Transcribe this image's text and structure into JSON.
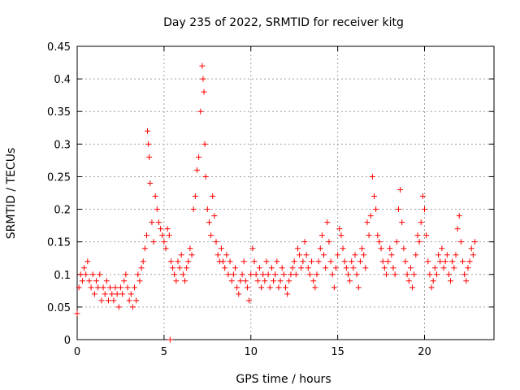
{
  "chart_data": {
    "type": "scatter",
    "title": "Day 235 of 2022, SRMTID for receiver kitg",
    "xlabel": "GPS time / hours",
    "ylabel": "SRMTID / TECUs",
    "xlim": [
      0,
      24
    ],
    "ylim": [
      0,
      0.45
    ],
    "x_ticks": [
      0,
      5,
      10,
      15,
      20
    ],
    "x_tick_labels": [
      "0",
      "5",
      "10",
      "15",
      "20"
    ],
    "y_ticks": [
      0,
      0.05,
      0.1,
      0.15,
      0.2,
      0.25,
      0.3,
      0.35,
      0.4,
      0.45
    ],
    "y_tick_labels": [
      "0",
      "0.05",
      "0.1",
      "0.15",
      "0.2",
      "0.25",
      "0.3",
      "0.35",
      "0.4",
      "0.45"
    ],
    "grid": true,
    "marker": "+",
    "color": "#ff0000",
    "series": [
      {
        "name": "SRMTID",
        "x": [
          0.0,
          0.1,
          0.2,
          0.3,
          0.4,
          0.5,
          0.6,
          0.7,
          0.8,
          0.9,
          1.0,
          1.1,
          1.2,
          1.3,
          1.4,
          1.5,
          1.6,
          1.7,
          1.8,
          1.9,
          2.0,
          2.1,
          2.2,
          2.3,
          2.4,
          2.5,
          2.6,
          2.7,
          2.8,
          2.9,
          3.0,
          3.1,
          3.2,
          3.3,
          3.4,
          3.5,
          3.6,
          3.7,
          3.8,
          3.9,
          4.0,
          4.05,
          4.1,
          4.15,
          4.2,
          4.3,
          4.4,
          4.5,
          4.6,
          4.7,
          4.8,
          4.9,
          5.0,
          5.1,
          5.2,
          5.3,
          5.4,
          5.5,
          5.6,
          5.7,
          5.8,
          5.9,
          6.0,
          6.1,
          6.2,
          6.3,
          6.4,
          6.5,
          6.6,
          6.7,
          6.8,
          6.9,
          7.0,
          7.1,
          7.2,
          7.25,
          7.3,
          7.35,
          7.4,
          7.5,
          7.6,
          7.7,
          7.8,
          7.9,
          8.0,
          8.1,
          8.2,
          8.3,
          8.4,
          8.5,
          8.6,
          8.7,
          8.8,
          8.9,
          9.0,
          9.1,
          9.2,
          9.3,
          9.4,
          9.5,
          9.6,
          9.7,
          9.8,
          9.9,
          10.0,
          10.1,
          10.2,
          10.3,
          10.4,
          10.5,
          10.6,
          10.7,
          10.8,
          10.9,
          11.0,
          11.1,
          11.2,
          11.3,
          11.4,
          11.5,
          11.6,
          11.7,
          11.8,
          11.9,
          12.0,
          12.1,
          12.2,
          12.3,
          12.4,
          12.5,
          12.6,
          12.7,
          12.8,
          12.9,
          13.0,
          13.1,
          13.2,
          13.3,
          13.4,
          13.5,
          13.6,
          13.7,
          13.8,
          13.9,
          14.0,
          14.1,
          14.2,
          14.3,
          14.4,
          14.5,
          14.6,
          14.7,
          14.8,
          14.9,
          15.0,
          15.1,
          15.2,
          15.3,
          15.4,
          15.5,
          15.6,
          15.7,
          15.8,
          15.9,
          16.0,
          16.1,
          16.2,
          16.3,
          16.4,
          16.5,
          16.6,
          16.7,
          16.8,
          16.9,
          17.0,
          17.1,
          17.2,
          17.3,
          17.4,
          17.5,
          17.6,
          17.7,
          17.8,
          17.9,
          18.0,
          18.1,
          18.2,
          18.3,
          18.4,
          18.5,
          18.6,
          18.7,
          18.8,
          18.9,
          19.0,
          19.1,
          19.2,
          19.3,
          19.4,
          19.5,
          19.6,
          19.7,
          19.8,
          19.9,
          20.0,
          20.1,
          20.2,
          20.3,
          20.4,
          20.5,
          20.6,
          20.7,
          20.8,
          20.9,
          21.0,
          21.1,
          21.2,
          21.3,
          21.4,
          21.5,
          21.6,
          21.7,
          21.8,
          21.9,
          22.0,
          22.1,
          22.2,
          22.3,
          22.4,
          22.5,
          22.6,
          22.7,
          22.8,
          22.9,
          5.35
        ],
        "y": [
          0.04,
          0.08,
          0.1,
          0.09,
          0.11,
          0.1,
          0.12,
          0.09,
          0.08,
          0.1,
          0.07,
          0.09,
          0.08,
          0.1,
          0.06,
          0.08,
          0.07,
          0.09,
          0.06,
          0.08,
          0.07,
          0.06,
          0.08,
          0.07,
          0.05,
          0.08,
          0.07,
          0.09,
          0.1,
          0.08,
          0.06,
          0.07,
          0.05,
          0.08,
          0.06,
          0.1,
          0.09,
          0.11,
          0.12,
          0.14,
          0.16,
          0.32,
          0.3,
          0.28,
          0.24,
          0.18,
          0.15,
          0.22,
          0.2,
          0.18,
          0.17,
          0.16,
          0.15,
          0.14,
          0.17,
          0.16,
          0.12,
          0.11,
          0.1,
          0.09,
          0.12,
          0.11,
          0.13,
          0.1,
          0.09,
          0.11,
          0.12,
          0.14,
          0.13,
          0.2,
          0.22,
          0.26,
          0.28,
          0.35,
          0.42,
          0.4,
          0.38,
          0.3,
          0.25,
          0.2,
          0.18,
          0.16,
          0.22,
          0.19,
          0.15,
          0.13,
          0.12,
          0.14,
          0.12,
          0.11,
          0.13,
          0.1,
          0.12,
          0.09,
          0.1,
          0.11,
          0.08,
          0.07,
          0.09,
          0.1,
          0.12,
          0.09,
          0.08,
          0.06,
          0.1,
          0.14,
          0.12,
          0.1,
          0.09,
          0.11,
          0.08,
          0.1,
          0.09,
          0.12,
          0.1,
          0.08,
          0.11,
          0.09,
          0.1,
          0.12,
          0.08,
          0.09,
          0.11,
          0.1,
          0.08,
          0.07,
          0.09,
          0.1,
          0.11,
          0.12,
          0.1,
          0.14,
          0.13,
          0.11,
          0.12,
          0.15,
          0.13,
          0.11,
          0.1,
          0.12,
          0.09,
          0.08,
          0.1,
          0.12,
          0.14,
          0.16,
          0.13,
          0.11,
          0.18,
          0.15,
          0.12,
          0.1,
          0.08,
          0.11,
          0.13,
          0.17,
          0.16,
          0.14,
          0.12,
          0.11,
          0.1,
          0.09,
          0.12,
          0.11,
          0.13,
          0.1,
          0.08,
          0.12,
          0.14,
          0.13,
          0.11,
          0.18,
          0.16,
          0.19,
          0.25,
          0.22,
          0.2,
          0.16,
          0.15,
          0.14,
          0.12,
          0.11,
          0.1,
          0.12,
          0.14,
          0.13,
          0.11,
          0.1,
          0.15,
          0.2,
          0.23,
          0.18,
          0.14,
          0.12,
          0.1,
          0.09,
          0.11,
          0.08,
          0.1,
          0.13,
          0.16,
          0.15,
          0.18,
          0.22,
          0.2,
          0.16,
          0.12,
          0.1,
          0.08,
          0.09,
          0.11,
          0.1,
          0.13,
          0.12,
          0.14,
          0.11,
          0.12,
          0.13,
          0.1,
          0.09,
          0.12,
          0.11,
          0.13,
          0.17,
          0.19,
          0.15,
          0.12,
          0.1,
          0.09,
          0.11,
          0.12,
          0.14,
          0.13,
          0.15,
          0.0
        ]
      }
    ]
  }
}
